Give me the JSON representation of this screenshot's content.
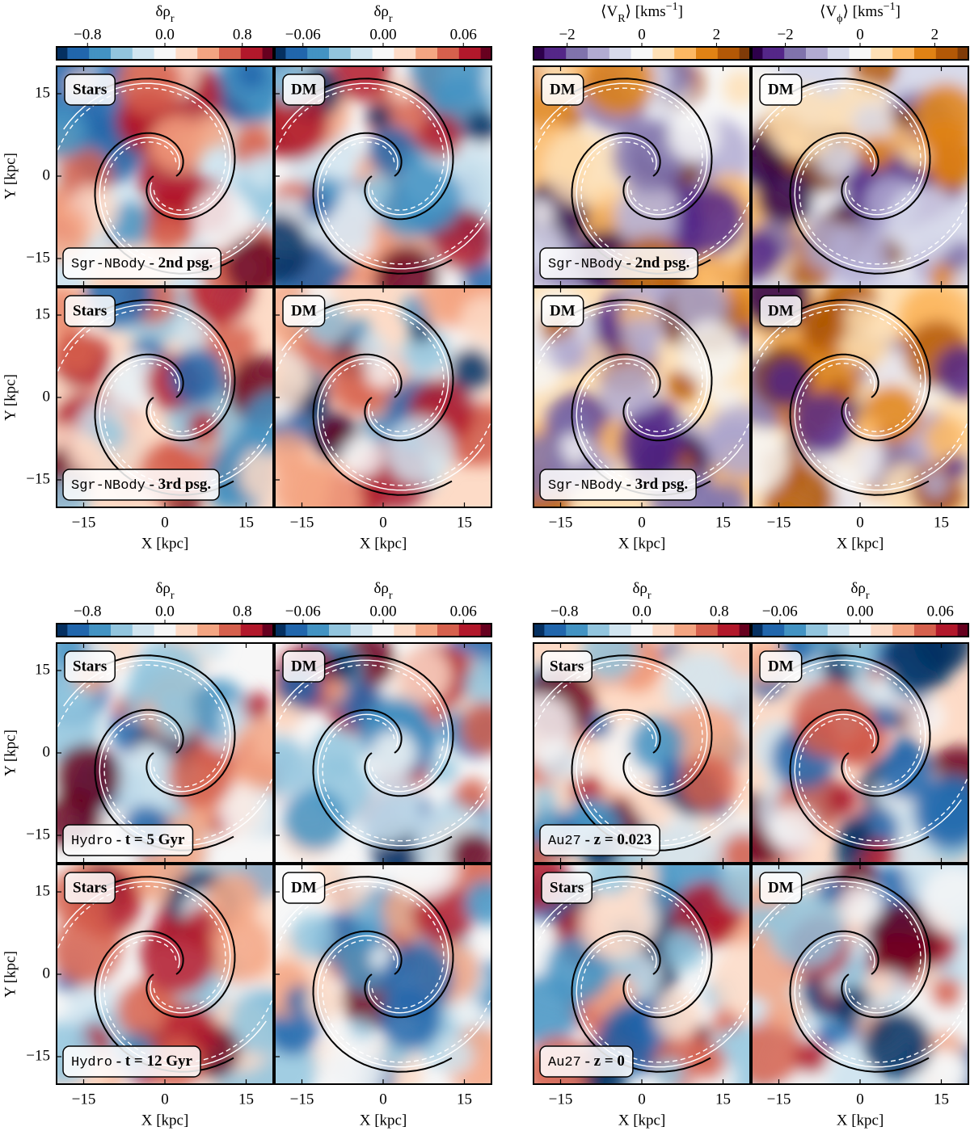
{
  "chart_data": [
    {
      "type": "heatmap",
      "colorbars": [
        {
          "label": [
            {
              "text": "δρ"
            },
            {
              "text": "r",
              "shift": "sub"
            }
          ],
          "colormap": "RdBu",
          "clim": [
            -1.12,
            1.12
          ],
          "ticks": [
            {
              "value": -0.8,
              "label": "−0.8"
            },
            {
              "value": 0,
              "label": "0.0"
            },
            0.8
          ]
        },
        {
          "label": [
            {
              "text": "δρ"
            },
            {
              "text": "r",
              "shift": "sub"
            }
          ],
          "colormap": "RdBu",
          "clim": [
            -0.081,
            0.081
          ],
          "ticks": [
            {
              "value": -0.06,
              "label": "−0.06"
            },
            {
              "value": 0,
              "label": "0.00"
            },
            0.06
          ]
        }
      ],
      "xlim": [
        -20,
        20
      ],
      "ylim": [
        -20,
        20
      ],
      "xticks": [
        {
          "value": -15,
          "label": "−15"
        },
        0,
        15
      ],
      "yticks": [
        {
          "value": -15,
          "label": "−15"
        },
        0,
        15
      ],
      "xlabel": "X [kpc]",
      "ylabel": "Y [kpc]",
      "rows": [
        {
          "tags": [
            "Stars",
            "DM"
          ],
          "caption": [
            {
              "text": "Sgr-NBody",
              "font": "mono"
            },
            {
              "text": " - 2nd psg.",
              "font": "bold"
            }
          ]
        },
        {
          "tags": [
            "Stars",
            "DM"
          ],
          "caption": [
            {
              "text": "Sgr-NBody",
              "font": "mono"
            },
            {
              "text": " - 3rd psg.",
              "font": "bold"
            }
          ]
        }
      ]
    },
    {
      "type": "heatmap",
      "colorbars": [
        {
          "label": [
            {
              "text": "⟨V"
            },
            {
              "text": "R",
              "shift": "sub"
            },
            {
              "text": "⟩ [kms"
            },
            {
              "text": "−1",
              "shift": "super"
            },
            {
              "text": "]"
            }
          ],
          "colormap": "PuOr",
          "clim": [
            -2.9,
            2.9
          ],
          "ticks": [
            {
              "value": -2,
              "label": "−2"
            },
            0,
            2
          ]
        },
        {
          "label": [
            {
              "text": "⟨V"
            },
            {
              "text": "ϕ",
              "shift": "sub"
            },
            {
              "text": "⟩ [kms"
            },
            {
              "text": "−1",
              "shift": "super"
            },
            {
              "text": "]"
            }
          ],
          "colormap": "PuOr",
          "clim": [
            -2.9,
            2.9
          ],
          "ticks": [
            {
              "value": -2,
              "label": "−2"
            },
            0,
            2
          ]
        }
      ],
      "xlim": [
        -20,
        20
      ],
      "ylim": [
        -20,
        20
      ],
      "xticks": [
        {
          "value": -15,
          "label": "−15"
        },
        0,
        15
      ],
      "xlabel": "X [kpc]",
      "rows": [
        {
          "tags": [
            "DM",
            "DM"
          ],
          "caption": [
            {
              "text": "Sgr-NBody",
              "font": "mono"
            },
            {
              "text": " - 2nd psg.",
              "font": "bold"
            }
          ]
        },
        {
          "tags": [
            "DM",
            "DM"
          ],
          "caption": [
            {
              "text": "Sgr-NBody",
              "font": "mono"
            },
            {
              "text": " - 3rd psg.",
              "font": "bold"
            }
          ]
        }
      ]
    },
    {
      "type": "heatmap",
      "colorbars": [
        {
          "label": [
            {
              "text": "δρ"
            },
            {
              "text": "r",
              "shift": "sub"
            }
          ],
          "colormap": "RdBu",
          "clim": [
            -1.12,
            1.12
          ],
          "ticks": [
            {
              "value": -0.8,
              "label": "−0.8"
            },
            {
              "value": 0,
              "label": "0.0"
            },
            0.8
          ]
        },
        {
          "label": [
            {
              "text": "δρ"
            },
            {
              "text": "r",
              "shift": "sub"
            }
          ],
          "colormap": "RdBu",
          "clim": [
            -0.081,
            0.081
          ],
          "ticks": [
            {
              "value": -0.06,
              "label": "−0.06"
            },
            {
              "value": 0,
              "label": "0.00"
            },
            0.06
          ]
        }
      ],
      "xlim": [
        -20,
        20
      ],
      "ylim": [
        -20,
        20
      ],
      "xticks": [
        {
          "value": -15,
          "label": "−15"
        },
        0,
        15
      ],
      "yticks": [
        {
          "value": -15,
          "label": "−15"
        },
        0,
        15
      ],
      "xlabel": "X [kpc]",
      "ylabel": "Y [kpc]",
      "rows": [
        {
          "tags": [
            "Stars",
            "DM"
          ],
          "caption": [
            {
              "text": "Hydro",
              "font": "mono"
            },
            {
              "text": " - t = 5 Gyr",
              "font": "bold"
            }
          ]
        },
        {
          "tags": [
            "Stars",
            "DM"
          ],
          "caption": [
            {
              "text": "Hydro",
              "font": "mono"
            },
            {
              "text": " - t = 12 Gyr",
              "font": "bold"
            }
          ]
        }
      ]
    },
    {
      "type": "heatmap",
      "colorbars": [
        {
          "label": [
            {
              "text": "δρ"
            },
            {
              "text": "r",
              "shift": "sub"
            }
          ],
          "colormap": "RdBu",
          "clim": [
            -1.12,
            1.12
          ],
          "ticks": [
            {
              "value": -0.8,
              "label": "−0.8"
            },
            {
              "value": 0,
              "label": "0.0"
            },
            0.8
          ]
        },
        {
          "label": [
            {
              "text": "δρ"
            },
            {
              "text": "r",
              "shift": "sub"
            }
          ],
          "colormap": "RdBu",
          "clim": [
            -0.081,
            0.081
          ],
          "ticks": [
            {
              "value": -0.06,
              "label": "−0.06"
            },
            {
              "value": 0,
              "label": "0.00"
            },
            0.06
          ]
        }
      ],
      "xlim": [
        -20,
        20
      ],
      "ylim": [
        -20,
        20
      ],
      "xticks": [
        {
          "value": -15,
          "label": "−15"
        },
        0,
        15
      ],
      "xlabel": "X [kpc]",
      "rows": [
        {
          "tags": [
            "Stars",
            "DM"
          ],
          "caption": [
            {
              "text": "Au27",
              "font": "mono"
            },
            {
              "text": " - z = 0.023",
              "font": "bold"
            }
          ]
        },
        {
          "tags": [
            "Stars",
            "DM"
          ],
          "caption": [
            {
              "text": "Au27",
              "font": "mono"
            },
            {
              "text": " - z = 0",
              "font": "bold"
            }
          ]
        }
      ]
    }
  ]
}
